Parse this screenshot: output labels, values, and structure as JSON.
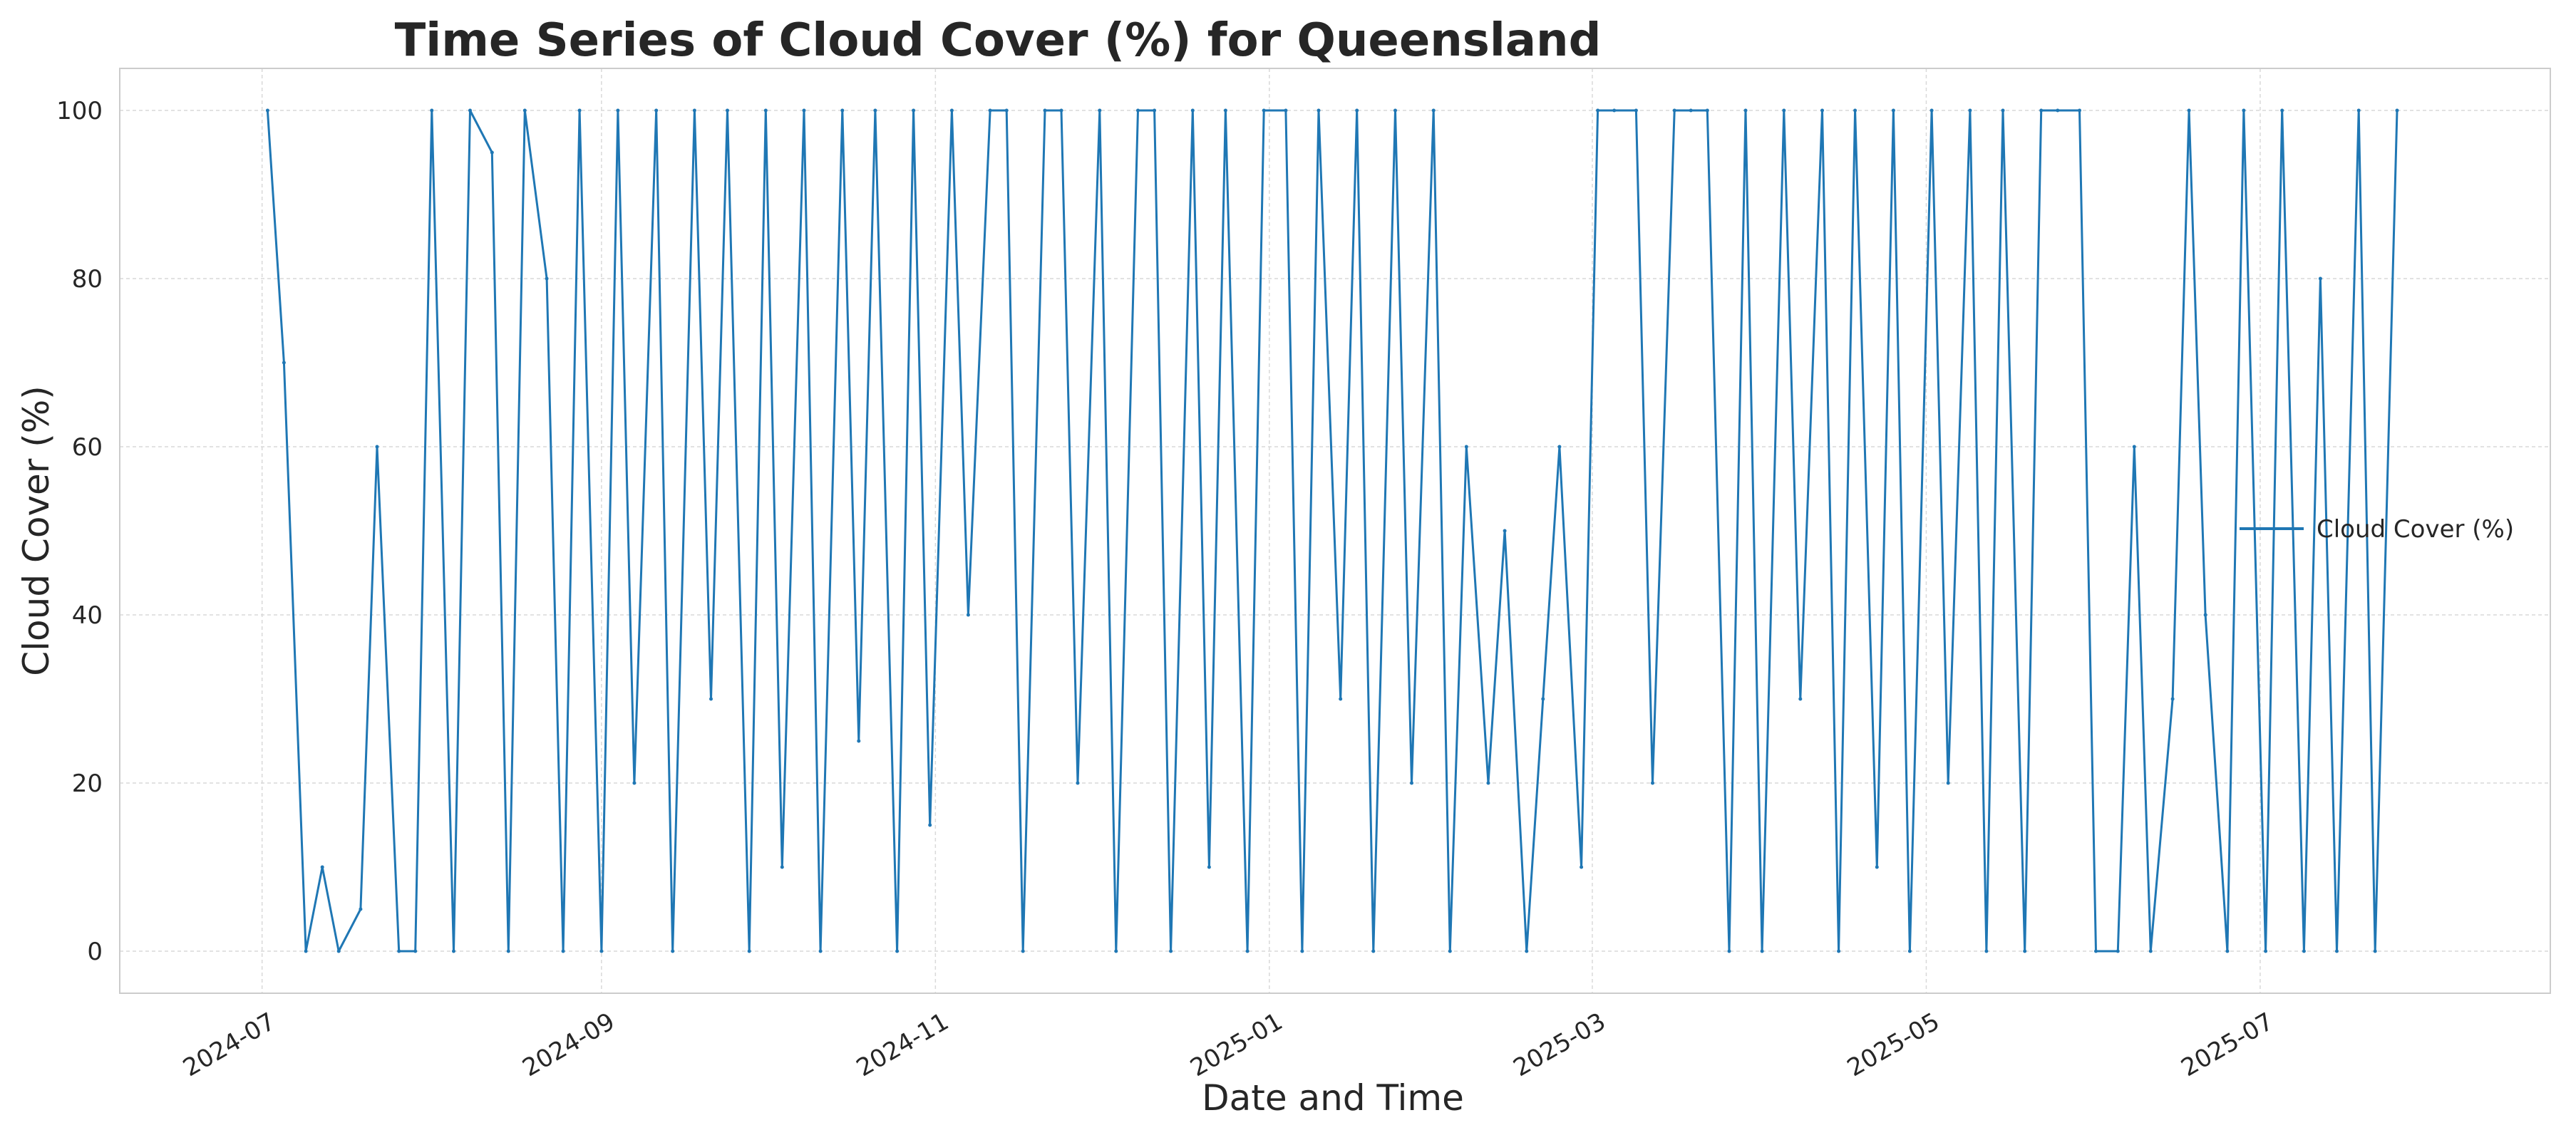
{
  "chart_data": {
    "type": "line",
    "title": "Time Series of Cloud Cover (%) for Queensland",
    "xlabel": "Date and Time",
    "ylabel": "Cloud Cover (%)",
    "xlim": [
      "2024-06-05",
      "2025-08-23"
    ],
    "ylim": [
      -5,
      105
    ],
    "x_tick_labels": [
      "2024-07",
      "2024-09",
      "2024-11",
      "2025-01",
      "2025-03",
      "2025-05",
      "2025-07"
    ],
    "x_ticks": [
      "2024-07-01",
      "2024-09-01",
      "2024-11-01",
      "2025-01-01",
      "2025-03-01",
      "2025-05-01",
      "2025-07-01"
    ],
    "y_ticks": [
      0,
      20,
      40,
      60,
      80,
      100
    ],
    "grid": true,
    "legend_position": "right",
    "colors": {
      "line": "#1f77b4",
      "grid": "#d9d9d9",
      "frame": "#cccccc",
      "text": "#262626"
    },
    "series": [
      {
        "name": "Cloud Cover (%)",
        "x": [
          "2024-07-02",
          "2024-07-05",
          "2024-07-09",
          "2024-07-12",
          "2024-07-15",
          "2024-07-19",
          "2024-07-22",
          "2024-07-26",
          "2024-07-29",
          "2024-08-01",
          "2024-08-05",
          "2024-08-08",
          "2024-08-12",
          "2024-08-15",
          "2024-08-18",
          "2024-08-22",
          "2024-08-25",
          "2024-08-28",
          "2024-09-01",
          "2024-09-04",
          "2024-09-07",
          "2024-09-11",
          "2024-09-14",
          "2024-09-18",
          "2024-09-21",
          "2024-09-24",
          "2024-09-28",
          "2024-10-01",
          "2024-10-04",
          "2024-10-08",
          "2024-10-11",
          "2024-10-15",
          "2024-10-18",
          "2024-10-21",
          "2024-10-25",
          "2024-10-28",
          "2024-10-31",
          "2024-11-04",
          "2024-11-07",
          "2024-11-11",
          "2024-11-14",
          "2024-11-17",
          "2024-11-21",
          "2024-11-24",
          "2024-11-27",
          "2024-12-01",
          "2024-12-04",
          "2024-12-08",
          "2024-12-11",
          "2024-12-14",
          "2024-12-18",
          "2024-12-21",
          "2024-12-24",
          "2024-12-28",
          "2024-12-31",
          "2025-01-04",
          "2025-01-07",
          "2025-01-10",
          "2025-01-14",
          "2025-01-17",
          "2025-01-20",
          "2025-01-24",
          "2025-01-27",
          "2025-01-31",
          "2025-02-03",
          "2025-02-06",
          "2025-02-10",
          "2025-02-13",
          "2025-02-17",
          "2025-02-20",
          "2025-02-23",
          "2025-02-27",
          "2025-03-02",
          "2025-03-05",
          "2025-03-09",
          "2025-03-12",
          "2025-03-16",
          "2025-03-19",
          "2025-03-22",
          "2025-03-26",
          "2025-03-29",
          "2025-04-01",
          "2025-04-05",
          "2025-04-08",
          "2025-04-12",
          "2025-04-15",
          "2025-04-18",
          "2025-04-22",
          "2025-04-25",
          "2025-04-28",
          "2025-05-02",
          "2025-05-05",
          "2025-05-09",
          "2025-05-12",
          "2025-05-15",
          "2025-05-19",
          "2025-05-22",
          "2025-05-25",
          "2025-05-29",
          "2025-06-01",
          "2025-06-05",
          "2025-06-08",
          "2025-06-11",
          "2025-06-15",
          "2025-06-18",
          "2025-06-21",
          "2025-06-25",
          "2025-06-28",
          "2025-07-02",
          "2025-07-05",
          "2025-07-09",
          "2025-07-12",
          "2025-07-15",
          "2025-07-19",
          "2025-07-22",
          "2025-07-26"
        ],
        "values": [
          100,
          70,
          0,
          10,
          0,
          5,
          60,
          0,
          0,
          100,
          0,
          100,
          95,
          0,
          100,
          80,
          0,
          100,
          0,
          100,
          20,
          100,
          0,
          100,
          30,
          100,
          0,
          100,
          10,
          100,
          0,
          100,
          25,
          100,
          0,
          100,
          15,
          100,
          40,
          100,
          100,
          0,
          100,
          100,
          20,
          100,
          0,
          100,
          100,
          0,
          100,
          10,
          100,
          0,
          100,
          100,
          0,
          100,
          30,
          100,
          0,
          100,
          20,
          100,
          0,
          60,
          20,
          50,
          0,
          30,
          60,
          10,
          100,
          100,
          100,
          20,
          100,
          100,
          100,
          0,
          100,
          0,
          100,
          30,
          100,
          0,
          100,
          10,
          100,
          0,
          100,
          20,
          100,
          0,
          100,
          0,
          100,
          100,
          100,
          0,
          0,
          60,
          0,
          30,
          100,
          40,
          0,
          100,
          0,
          100,
          0,
          80,
          0,
          100,
          0,
          100
        ]
      }
    ]
  }
}
